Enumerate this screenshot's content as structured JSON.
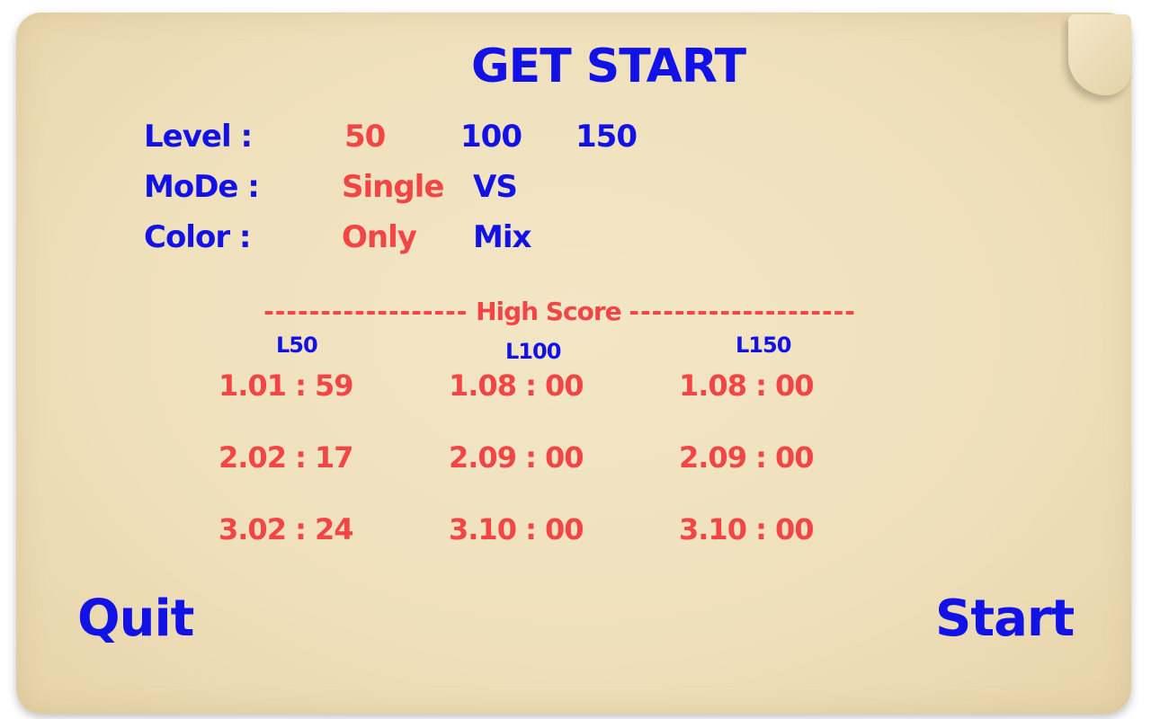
{
  "title": "GET START",
  "options": {
    "level": {
      "label": "Level :",
      "values": [
        "50",
        "100",
        "150"
      ],
      "selected": "50"
    },
    "mode": {
      "label": "MoDe :",
      "values": [
        "Single",
        "VS"
      ],
      "selected": "Single"
    },
    "color": {
      "label": "Color :",
      "values": [
        "Only",
        "Mix"
      ],
      "selected": "Only"
    }
  },
  "high_score": {
    "label": "High Score",
    "dashes_left": "------------------",
    "dashes_right": "--------------------",
    "columns": [
      {
        "header": "L50",
        "scores": [
          "1.01 : 59",
          "2.02 : 17",
          "3.02 : 24"
        ]
      },
      {
        "header": "L100",
        "scores": [
          "1.08 : 00",
          "2.09 : 00",
          "3.10 : 00"
        ]
      },
      {
        "header": "L150",
        "scores": [
          "1.08 : 00",
          "2.09 : 00",
          "3.10 : 00"
        ]
      }
    ]
  },
  "buttons": {
    "quit": "Quit",
    "start": "Start"
  },
  "colors": {
    "blue": "#1212e6",
    "red": "#f24646",
    "paper": "#efe0bb"
  }
}
